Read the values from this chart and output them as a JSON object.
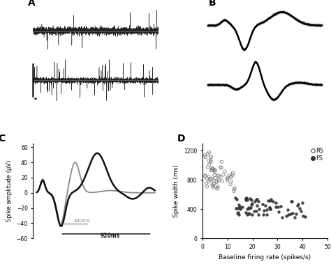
{
  "panel_labels": [
    "A",
    "B",
    "C",
    "D"
  ],
  "label_fontsize": 10,
  "label_fontweight": "bold",
  "bg_color": "#ffffff",
  "panel_C": {
    "ylabel": "Spike amplitude (μV)",
    "ylim": [
      -60,
      65
    ],
    "yticks": [
      -60,
      -40,
      -20,
      0,
      20,
      40,
      60
    ],
    "annotation_440": "440ms",
    "annotation_920": "920ms",
    "gray_color": "#888888",
    "black_color": "#111111"
  },
  "panel_D": {
    "xlabel": "Baseline firing rate (spikes/s)",
    "ylabel": "Spike width (ms)",
    "xlim": [
      0,
      50
    ],
    "ylim": [
      0,
      1300
    ],
    "xticks": [
      0,
      10,
      20,
      30,
      40,
      50
    ],
    "yticks": [
      0,
      400,
      800,
      1200
    ],
    "rs_color": "#bbbbbb",
    "fs_color": "#333333",
    "legend_rs": "RS",
    "legend_fs": "FS"
  }
}
